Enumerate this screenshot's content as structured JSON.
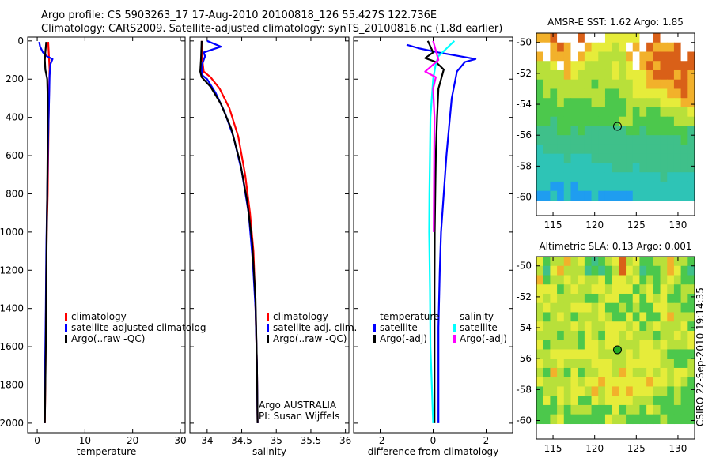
{
  "header": {
    "line1": "Argo profile: CS 5903263_17 17-Aug-2010 20100818_126 55.427S 122.736E",
    "line2": "Climatology: CARS2009. Satellite-adjusted climatology: synTS_20100816.nc (1.8d earlier)"
  },
  "watermark": "CSIRO 22-Sep-2010 19:14:35",
  "colors": {
    "climatology": "#ff0000",
    "satellite": "#0000ff",
    "argo": "#000000",
    "sat_salinity": "#00ffff",
    "argo_salinity_adj": "#ff00ff"
  },
  "chart_data": [
    {
      "id": "temperature",
      "type": "line",
      "xlabel": "temperature",
      "ylabel": "",
      "xlim": [
        -2,
        31
      ],
      "ylim": [
        2050,
        -20
      ],
      "xticks": [
        0,
        10,
        20,
        30
      ],
      "xtick_labels": [
        "0",
        "10",
        "20",
        "30"
      ],
      "yticks": [
        0,
        200,
        400,
        600,
        800,
        1000,
        1200,
        1400,
        1600,
        1800,
        2000
      ],
      "ytick_labels": [
        "0",
        "200",
        "400",
        "600",
        "800",
        "1000",
        "1200",
        "1400",
        "1600",
        "1800",
        "2000"
      ],
      "legend": {
        "position": "lower-right",
        "items": [
          {
            "label": "climatology",
            "color": "#ff0000"
          },
          {
            "label": "satellite-adjusted climatolog",
            "color": "#0000ff"
          },
          {
            "label": "Argo(..raw -QC)",
            "color": "#000000"
          }
        ]
      },
      "series": [
        {
          "name": "climatology",
          "color": "#ff0000",
          "x": [
            2.3,
            2.4,
            2.5,
            2.6,
            2.5,
            2.4,
            2.3,
            2.2,
            2.0,
            1.9,
            1.8,
            1.7,
            1.6
          ],
          "y": [
            5,
            50,
            100,
            150,
            250,
            400,
            600,
            800,
            1000,
            1200,
            1500,
            1800,
            2000
          ]
        },
        {
          "name": "satellite-adjusted climatology",
          "color": "#0000ff",
          "x": [
            0.4,
            0.6,
            1.2,
            2.0,
            3.2,
            2.8,
            2.6,
            2.5,
            2.3,
            2.1,
            1.9,
            1.8,
            1.6,
            1.5
          ],
          "y": [
            5,
            30,
            60,
            80,
            95,
            120,
            180,
            300,
            500,
            800,
            1100,
            1400,
            1800,
            2000
          ]
        },
        {
          "name": "Argo(..raw -QC)",
          "color": "#000000",
          "x": [
            1.9,
            1.7,
            1.6,
            1.7,
            2.1,
            2.2,
            2.2,
            2.1,
            2.0,
            1.9,
            1.8,
            1.7,
            1.6
          ],
          "y": [
            5,
            60,
            100,
            150,
            200,
            300,
            500,
            800,
            1000,
            1300,
            1600,
            1800,
            2000
          ]
        }
      ]
    },
    {
      "id": "salinity",
      "type": "line",
      "xlabel": "salinity",
      "ylabel": "",
      "xlim": [
        33.75,
        36.05
      ],
      "ylim": [
        2050,
        -20
      ],
      "xticks": [
        34,
        34.5,
        35,
        35.5,
        36
      ],
      "xtick_labels": [
        "34",
        "34.5",
        "35",
        "35.5",
        "36"
      ],
      "legend": {
        "position": "lower-right",
        "items": [
          {
            "label": "climatology",
            "color": "#ff0000"
          },
          {
            "label": "satellite adj. clim.",
            "color": "#0000ff"
          },
          {
            "label": "Argo(..raw -QC)",
            "color": "#000000"
          }
        ]
      },
      "annotation": [
        "Argo AUSTRALIA",
        "PI: Susan Wijffels"
      ],
      "series": [
        {
          "name": "climatology",
          "color": "#ff0000",
          "x": [
            33.92,
            33.93,
            33.95,
            34.05,
            34.18,
            34.32,
            34.45,
            34.55,
            34.62,
            34.67,
            34.7,
            34.72,
            34.73
          ],
          "y": [
            0,
            100,
            160,
            190,
            250,
            350,
            500,
            700,
            900,
            1100,
            1400,
            1700,
            2000
          ]
        },
        {
          "name": "satellite adj. clim.",
          "color": "#0000ff",
          "x": [
            34.0,
            34.2,
            33.95,
            33.97,
            33.93,
            33.92,
            33.93,
            34.0,
            34.12,
            34.25,
            34.38,
            34.5,
            34.6,
            34.66,
            34.7,
            34.72,
            34.73
          ],
          "y": [
            0,
            30,
            60,
            80,
            120,
            150,
            180,
            200,
            270,
            370,
            500,
            680,
            900,
            1150,
            1400,
            1700,
            2000
          ]
        },
        {
          "name": "Argo(..raw -QC)",
          "color": "#000000",
          "x": [
            33.92,
            33.91,
            33.9,
            33.92,
            34.05,
            34.2,
            34.35,
            34.48,
            34.58,
            34.65,
            34.7,
            34.72,
            34.73
          ],
          "y": [
            0,
            100,
            160,
            190,
            240,
            330,
            460,
            640,
            840,
            1050,
            1350,
            1700,
            2000
          ]
        }
      ]
    },
    {
      "id": "difference",
      "type": "line",
      "xlabel": "difference from climatology",
      "ylabel": "",
      "xlim": [
        -3,
        3
      ],
      "ylim": [
        2050,
        -20
      ],
      "xticks": [
        -2,
        0,
        2
      ],
      "xtick_labels": [
        "-2",
        "0",
        "2"
      ],
      "legend": {
        "position": "lower-right",
        "columns": [
          {
            "heading": "temperature",
            "items": [
              {
                "label": "satellite",
                "color": "#0000ff"
              },
              {
                "label": "Argo(-adj)",
                "color": "#000000"
              }
            ]
          },
          {
            "heading": "salinity",
            "items": [
              {
                "label": "satellite",
                "color": "#00ffff"
              },
              {
                "label": "Argo(-adj)",
                "color": "#ff00ff"
              }
            ]
          }
        ]
      },
      "series": [
        {
          "name": "temperature satellite",
          "color": "#0000ff",
          "x": [
            -1.0,
            -0.5,
            0.2,
            1.0,
            1.6,
            1.2,
            0.9,
            0.7,
            0.6,
            0.5,
            0.4,
            0.3,
            0.25,
            0.2,
            0.2,
            0.2
          ],
          "y": [
            20,
            40,
            60,
            80,
            95,
            110,
            160,
            300,
            450,
            600,
            800,
            1000,
            1200,
            1500,
            1800,
            2000
          ]
        },
        {
          "name": "temperature Argo(-adj)",
          "color": "#000000",
          "x": [
            -0.2,
            0.0,
            -0.3,
            0.1,
            0.4,
            0.2,
            0.15,
            0.1,
            0.08,
            0.06,
            0.05,
            0.05,
            0.05
          ],
          "y": [
            0,
            60,
            90,
            110,
            150,
            250,
            400,
            600,
            800,
            1000,
            1300,
            1700,
            2000
          ]
        },
        {
          "name": "salinity satellite",
          "color": "#00ffff",
          "x": [
            0.8,
            0.5,
            0.2,
            0.1,
            0.0,
            -0.05,
            -0.1,
            -0.12,
            -0.14,
            -0.15,
            -0.12,
            -0.1,
            -0.05,
            0.0
          ],
          "y": [
            0,
            40,
            80,
            120,
            200,
            300,
            400,
            600,
            800,
            1000,
            1300,
            1600,
            1800,
            2000
          ]
        },
        {
          "name": "salinity Argo(-adj)",
          "color": "#ff00ff",
          "x": [
            0.0,
            0.2,
            -0.3,
            0.1,
            0.0,
            0.05,
            0.04,
            0.03,
            0.02
          ],
          "y": [
            0,
            100,
            160,
            190,
            250,
            400,
            600,
            800,
            1000
          ]
        }
      ]
    },
    {
      "id": "sst-map",
      "type": "heatmap",
      "title": "AMSR-E SST: 1.62 Argo: 1.85",
      "xlim": [
        113,
        132
      ],
      "ylim": [
        -61.2,
        -49.4
      ],
      "data_lat_range": [
        -60.2,
        -49.4
      ],
      "xticks": [
        115,
        120,
        125,
        130
      ],
      "xtick_labels": [
        "115",
        "120",
        "125",
        "130"
      ],
      "yticks": [
        -60,
        -58,
        -56,
        -54,
        -52,
        -50
      ],
      "ytick_labels": [
        "-60",
        "-58",
        "-56",
        "-54",
        "-52",
        "-50"
      ],
      "argo_marker": {
        "lon": 122.736,
        "lat": -55.427,
        "fill": "none"
      },
      "rows_north_to_south": [
        "ooROOOROOOyyyyyOOROOOOO",
        "OOoRoOOoyyyYyOoORoooROO",
        "oOoooOoyyYYYYoOooRRRROR",
        "YYyOoyyYYYYyYyOoRoRRRRR",
        "YYYYoyYYYYYyYyyyoRRRoRo",
        "GYYYYYYYGYYYYYyyooooRRo",
        "GYGYYYYYYYGGYYyyyyyooRo",
        "GGGYGGGGYYGGGYYYYYyyyoo",
        "GGGGGGGGGGGGGYGYGGYYYYy",
        "GGgGGGGGGGGGYYGGGGGGYYY",
        "gggGGgGggggggGGgGGGGGGg",
        "gggggggggggggggggggggGg",
        "cgggggggggggggggggggggg",
        "ccccgcccggggggggggggggg",
        "cccccccccccgggcgggggggg",
        "ccccccccccccccccccgcccc",
        "ccbbcbccccccccccccccccc",
        "bbcbcbbbcbbbbbccccccccc"
      ]
    },
    {
      "id": "sla-map",
      "type": "heatmap",
      "title": "Altimetric SLA: 0.13 Argo: 0.001",
      "xlim": [
        113,
        132
      ],
      "ylim": [
        -61.2,
        -49.4
      ],
      "data_lat_range": [
        -60.2,
        -49.4
      ],
      "xticks": [
        115,
        120,
        125,
        130
      ],
      "xtick_labels": [
        "115",
        "120",
        "125",
        "130"
      ],
      "yticks": [
        -60,
        -58,
        -56,
        -54,
        -52,
        -50
      ],
      "ytick_labels": [
        "-60",
        "-58",
        "-56",
        "-54",
        "-52",
        "-50"
      ],
      "argo_marker": {
        "lon": 122.736,
        "lat": -55.427,
        "fill": "#22aa22"
      },
      "rows_north_to_south": [
        "yGYYoYyGgGYyRYyGGYYoYYG",
        "YgyoYYYgGgGYRyYgGGYoyGg",
        "oGYYyYyYYyGyyYyGYGYyYGG",
        "yyyGYyYYyyYyyyGYyGyYGYY",
        "yYyYYYYGGYyyGGyGyYyGGYG",
        "YyYYYyyyYyGGYGYGGyyYYGG",
        "YGYyYGYYYyYGGyGyGGyoYYY",
        "yYYYYyYyYYyyyYyGYyYYYyG",
        "YYYGYYGyYGyyYyYYYGYYyYy",
        "yGYYYYGyyYyyYYYyyYyYYYy",
        "YYyyyyyyyYYYYyYyyyYGGGG",
        "yYYyYYYYyyyYYyyyyyYYGGY",
        "YGoYGyGYYyyYoyYYyYyYyyY",
        "yYYYYyYyyoyyyyyyoyyYyYG",
        "GYYyYyyYoYyoyoyyyYYGYGG",
        "GyGyYyGGyYyyyyYYYGGGYGG",
        "GGGYGYYYGGGyGYYGyYGGGGG",
        "GGYyGGGGGGyYYGGGGGYGGGG"
      ]
    }
  ]
}
